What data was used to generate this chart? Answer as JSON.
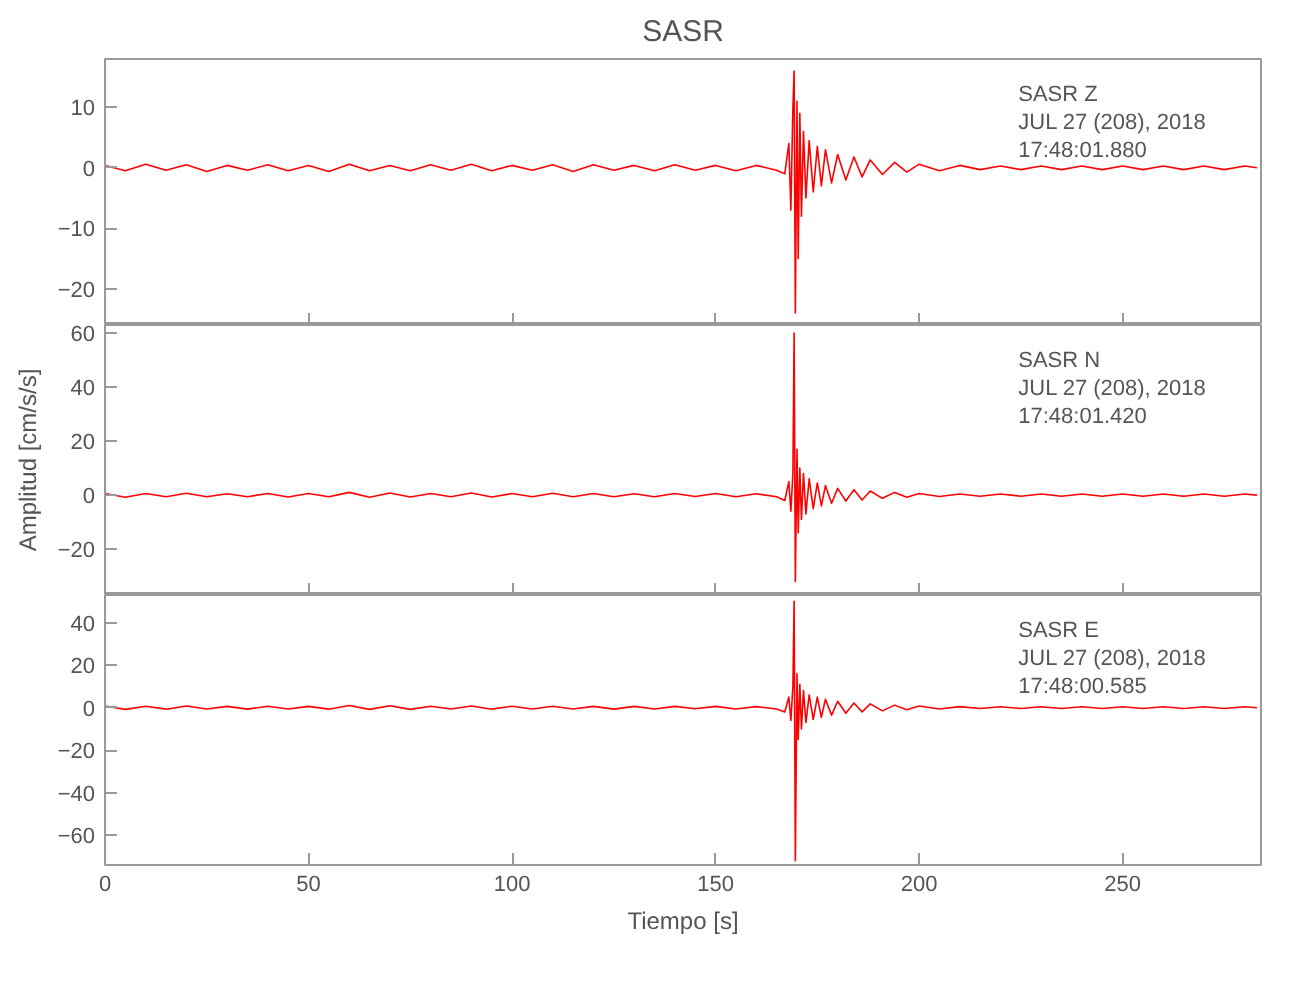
{
  "chart_data": [
    {
      "type": "line",
      "title": "SASR",
      "annotations": [
        "SASR   Z",
        "JUL 27 (208), 2018",
        "17:48:01.880"
      ],
      "xlim": [
        0,
        284
      ],
      "xticks": [
        0,
        50,
        100,
        150,
        200,
        250
      ],
      "ylim": [
        -26,
        18
      ],
      "yticks": [
        -20,
        -10,
        0,
        10
      ],
      "tick_labels": "y",
      "line_style": "solid",
      "series": [
        {
          "color": "#ff0000",
          "x": [
            0,
            5,
            10,
            15,
            20,
            25,
            30,
            35,
            40,
            45,
            50,
            55,
            60,
            65,
            70,
            75,
            80,
            85,
            90,
            95,
            100,
            105,
            110,
            115,
            120,
            125,
            130,
            135,
            140,
            145,
            150,
            155,
            160,
            165,
            167,
            168,
            168.5,
            169,
            169.3,
            169.6,
            170,
            170.3,
            170.7,
            171.1,
            171.6,
            172.2,
            173,
            174,
            175,
            176,
            177,
            178.5,
            180,
            182,
            184,
            186,
            188,
            191,
            194,
            197,
            200,
            205,
            210,
            215,
            220,
            225,
            230,
            235,
            240,
            245,
            250,
            255,
            260,
            265,
            270,
            275,
            280,
            283
          ],
          "values": [
            0.4,
            -0.5,
            0.6,
            -0.4,
            0.5,
            -0.6,
            0.4,
            -0.4,
            0.5,
            -0.5,
            0.4,
            -0.6,
            0.6,
            -0.5,
            0.4,
            -0.5,
            0.5,
            -0.4,
            0.6,
            -0.5,
            0.4,
            -0.4,
            0.5,
            -0.6,
            0.5,
            -0.4,
            0.4,
            -0.5,
            0.5,
            -0.4,
            0.4,
            -0.5,
            0.4,
            -0.4,
            -1,
            4,
            -7,
            10,
            16,
            -24,
            11,
            -15,
            9,
            -8,
            6,
            -5,
            4.5,
            -4,
            3.5,
            -3,
            3,
            -2.5,
            2.2,
            -2,
            1.8,
            -1.5,
            1.3,
            -1.1,
            0.9,
            -0.7,
            0.6,
            -0.5,
            0.4,
            -0.3,
            0.3,
            -0.3,
            0.3,
            -0.3,
            0.3,
            -0.3,
            0.3,
            -0.3,
            0.3,
            -0.3,
            0.3,
            -0.3,
            0.3,
            0
          ]
        }
      ]
    },
    {
      "type": "line",
      "ylabel": "Amplitud [cm/s/s]",
      "annotations": [
        "SASR   N",
        "JUL 27 (208), 2018",
        "17:48:01.420"
      ],
      "xlim": [
        0,
        284
      ],
      "xticks": [
        0,
        50,
        100,
        150,
        200,
        250
      ],
      "ylim": [
        -37,
        63
      ],
      "yticks": [
        -20,
        0,
        20,
        40,
        60
      ],
      "tick_labels": "y",
      "line_style": "solid",
      "series": [
        {
          "color": "#ff0000",
          "x": [
            0,
            5,
            10,
            15,
            20,
            25,
            30,
            35,
            40,
            45,
            50,
            55,
            60,
            65,
            70,
            75,
            80,
            85,
            90,
            95,
            100,
            105,
            110,
            115,
            120,
            125,
            130,
            135,
            140,
            145,
            150,
            155,
            160,
            165,
            167,
            168,
            168.5,
            169,
            169.3,
            169.6,
            170,
            170.3,
            170.7,
            171.1,
            171.6,
            172.2,
            173,
            174,
            175,
            176,
            177,
            178.5,
            180,
            182,
            184,
            186,
            188,
            191,
            194,
            197,
            200,
            205,
            210,
            215,
            220,
            225,
            230,
            235,
            240,
            245,
            250,
            255,
            260,
            265,
            270,
            275,
            280,
            283
          ],
          "values": [
            0.6,
            -0.8,
            0.6,
            -0.6,
            0.7,
            -0.6,
            0.5,
            -0.6,
            0.6,
            -0.7,
            0.6,
            -0.6,
            1,
            -0.8,
            0.8,
            -0.7,
            0.6,
            -0.6,
            0.8,
            -0.7,
            0.6,
            -0.6,
            0.7,
            -0.6,
            0.6,
            -0.6,
            0.5,
            -0.6,
            0.6,
            -0.5,
            0.6,
            -0.6,
            0.5,
            -0.6,
            -2,
            5,
            -6,
            8,
            60,
            -32,
            17,
            -14,
            10,
            -9,
            8,
            -7,
            6,
            -5,
            4.5,
            -4,
            3.5,
            -3,
            2.5,
            -2.2,
            2,
            -1.8,
            1.5,
            -1.2,
            1,
            -0.8,
            0.6,
            -0.5,
            0.4,
            -0.4,
            0.4,
            -0.4,
            0.4,
            -0.4,
            0.4,
            -0.4,
            0.4,
            -0.4,
            0.4,
            -0.4,
            0.4,
            -0.4,
            0.4,
            0
          ]
        }
      ]
    },
    {
      "type": "line",
      "xlabel": "Tiempo [s]",
      "annotations": [
        "SASR   E",
        "JUL 27 (208), 2018",
        "17:48:00.585"
      ],
      "xlim": [
        0,
        284
      ],
      "xticks": [
        0,
        50,
        100,
        150,
        200,
        250
      ],
      "ylim": [
        -74,
        53
      ],
      "yticks": [
        -60,
        -40,
        -20,
        0,
        20,
        40
      ],
      "line_style": "solid",
      "series": [
        {
          "color": "#ff0000",
          "x": [
            0,
            5,
            10,
            15,
            20,
            25,
            30,
            35,
            40,
            45,
            50,
            55,
            60,
            65,
            70,
            75,
            80,
            85,
            90,
            95,
            100,
            105,
            110,
            115,
            120,
            125,
            130,
            135,
            140,
            145,
            150,
            155,
            160,
            165,
            167,
            168,
            168.5,
            169,
            169.3,
            169.6,
            170,
            170.3,
            170.7,
            171.1,
            171.6,
            172.2,
            173,
            174,
            175,
            176,
            177,
            178.5,
            180,
            182,
            184,
            186,
            188,
            191,
            194,
            197,
            200,
            205,
            210,
            215,
            220,
            225,
            230,
            235,
            240,
            245,
            250,
            255,
            260,
            265,
            270,
            275,
            280,
            283
          ],
          "values": [
            0.8,
            -0.8,
            0.7,
            -0.7,
            0.8,
            -0.6,
            0.6,
            -0.7,
            0.7,
            -0.6,
            0.6,
            -0.7,
            1,
            -0.8,
            0.9,
            -0.8,
            0.7,
            -0.6,
            0.8,
            -0.7,
            0.7,
            -0.6,
            0.7,
            -0.6,
            0.6,
            -0.7,
            0.6,
            -0.6,
            0.6,
            -0.5,
            0.6,
            -0.6,
            0.5,
            -0.6,
            -2,
            5,
            -6,
            10,
            50,
            -72,
            16,
            -15,
            11,
            -10,
            8,
            -7,
            6,
            -5.5,
            5,
            -4.5,
            4,
            -3.5,
            3,
            -2.6,
            2.2,
            -2,
            1.8,
            -1.5,
            1.2,
            -1,
            0.8,
            -0.6,
            0.5,
            -0.4,
            0.4,
            -0.4,
            0.4,
            -0.4,
            0.4,
            -0.4,
            0.4,
            -0.4,
            0.4,
            -0.4,
            0.4,
            -0.4,
            0.4,
            0
          ]
        }
      ]
    }
  ]
}
